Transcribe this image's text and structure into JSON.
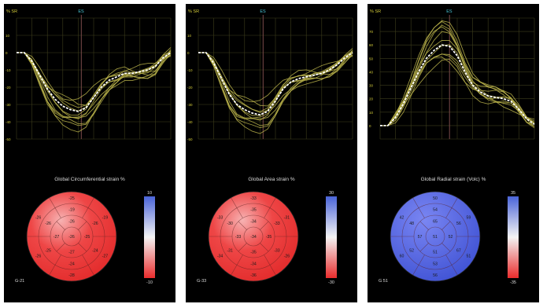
{
  "colors": {
    "panel_bg": "#000000",
    "grid": "#3e3e1c",
    "curve": "#b9b24a",
    "mean_curve": "#ffffff",
    "marker_line": "#7a4a4a",
    "axis_label": "#d4cc3a",
    "marker_label": "#49c6d6",
    "scale_max": "#4a64d8",
    "scale_mid": "#f4f4f4",
    "scale_min": "#ea2c2c"
  },
  "chart_data": [
    {
      "type": "line",
      "unit_label": "% SR",
      "marker_label": "ES",
      "marker_x": 0.42,
      "ylim": [
        -50,
        20
      ],
      "y_ticks": [
        "10",
        "0",
        "-10",
        "-20",
        "-30",
        "-40",
        "-50"
      ],
      "mean": {
        "x": [
          0,
          0.05,
          0.1,
          0.15,
          0.2,
          0.25,
          0.3,
          0.35,
          0.4,
          0.45,
          0.5,
          0.55,
          0.6,
          0.65,
          0.7,
          0.75,
          0.8,
          0.85,
          0.9,
          0.95,
          1
        ],
        "y": [
          0,
          0,
          -5,
          -13,
          -21,
          -27,
          -31,
          -33,
          -34,
          -32,
          -26,
          -20,
          -16,
          -14,
          -12,
          -12,
          -11,
          -10,
          -8,
          -3,
          0
        ]
      },
      "curve_amplitude": [
        1.35,
        1.25,
        1.15,
        1.05,
        0.95,
        0.88,
        1.2,
        0.8,
        1.1,
        0.92,
        1.3
      ],
      "curve_noise": [
        0,
        2.5,
        -2,
        1.5,
        -1.5,
        3,
        -3,
        2,
        -1,
        1,
        -2.5
      ],
      "title": "Global Circumferential strain %",
      "scale_max": "10",
      "scale_min": "-10",
      "gradient": "cool",
      "global_label": "G-21",
      "bullseye": {
        "ring1": [
          "-25",
          "-19",
          "-27",
          "-28",
          "-26",
          "-26"
        ],
        "ring2": [
          "-19",
          "-26",
          "-24",
          "-24",
          "-25",
          "-26"
        ],
        "ring3": [
          "-26",
          "-25",
          "-27",
          "-27"
        ],
        "apex": [
          "-26"
        ]
      }
    },
    {
      "type": "line",
      "unit_label": "% SR",
      "marker_label": "ES",
      "marker_x": 0.42,
      "ylim": [
        -50,
        20
      ],
      "y_ticks": [
        "10",
        "0",
        "-10",
        "-20",
        "-30",
        "-40",
        "-50"
      ],
      "mean": {
        "x": [
          0,
          0.05,
          0.1,
          0.15,
          0.2,
          0.25,
          0.3,
          0.35,
          0.4,
          0.45,
          0.5,
          0.55,
          0.6,
          0.65,
          0.7,
          0.75,
          0.8,
          0.85,
          0.9,
          0.95,
          1
        ],
        "y": [
          0,
          0,
          -6,
          -15,
          -24,
          -30,
          -33,
          -35,
          -36,
          -34,
          -28,
          -21,
          -17,
          -15,
          -14,
          -13,
          -12,
          -10,
          -7,
          -3,
          0
        ]
      },
      "curve_amplitude": [
        1.3,
        1.2,
        1.1,
        1.0,
        0.92,
        0.85,
        1.15,
        0.78,
        1.05,
        0.95,
        1.25
      ],
      "curve_noise": [
        0,
        2,
        -2.5,
        1.5,
        -1,
        2.5,
        -3,
        2,
        -1.5,
        1,
        -2
      ],
      "title": "Global Area strain %",
      "scale_max": "30",
      "scale_min": "-30",
      "gradient": "cool",
      "global_label": "G-33",
      "bullseye": {
        "ring1": [
          "-33",
          "-31",
          "-26",
          "-36",
          "-34",
          "-33"
        ],
        "ring2": [
          "-35",
          "-33",
          "-33",
          "-34",
          "-31",
          "-30"
        ],
        "ring3": [
          "-34",
          "-35",
          "-35",
          "-33"
        ],
        "apex": [
          "-34"
        ]
      }
    },
    {
      "type": "line",
      "unit_label": "% SR",
      "marker_label": "ES",
      "marker_x": 0.45,
      "ylim": [
        -10,
        80
      ],
      "y_ticks": [
        "70",
        "60",
        "50",
        "40",
        "30",
        "20",
        "10",
        "0"
      ],
      "mean": {
        "x": [
          0,
          0.05,
          0.1,
          0.15,
          0.2,
          0.25,
          0.3,
          0.35,
          0.4,
          0.45,
          0.5,
          0.55,
          0.6,
          0.65,
          0.7,
          0.75,
          0.8,
          0.85,
          0.9,
          0.95,
          1
        ],
        "y": [
          0,
          0,
          6,
          16,
          28,
          40,
          50,
          56,
          60,
          59,
          52,
          40,
          30,
          25,
          22,
          21,
          20,
          18,
          12,
          5,
          1
        ]
      },
      "curve_amplitude": [
        1.3,
        1.2,
        1.12,
        1.0,
        0.92,
        0.85,
        1.18,
        0.8,
        1.08,
        0.9,
        1.25
      ],
      "curve_noise": [
        0,
        3,
        -3,
        2,
        -2,
        4,
        -4,
        2.5,
        -1.5,
        1.5,
        -3
      ],
      "title": "Global Radial strain (Volc) %",
      "scale_max": "35",
      "scale_min": "-35",
      "gradient": "blue",
      "global_label": "G 51",
      "bullseye": {
        "ring1": [
          "50",
          "59",
          "51",
          "56",
          "60",
          "42"
        ],
        "ring2": [
          "54",
          "56",
          "67",
          "53",
          "52",
          "48"
        ],
        "ring3": [
          "65",
          "52",
          "51",
          "57"
        ],
        "apex": [
          "51"
        ]
      }
    }
  ]
}
